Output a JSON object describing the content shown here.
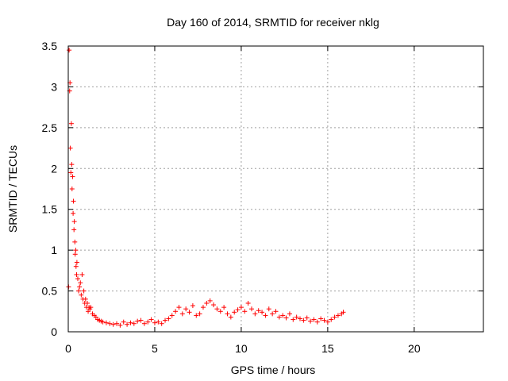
{
  "chart_data": {
    "type": "scatter",
    "title": "Day 160 of 2014, SRMTID for receiver nklg",
    "xlabel": "GPS time / hours",
    "ylabel": "SRMTID / TECUs",
    "xlim": [
      0,
      24
    ],
    "ylim": [
      0,
      3.5
    ],
    "xticks": [
      0,
      5,
      10,
      15,
      20
    ],
    "xtick_labels": [
      "0",
      "5",
      "10",
      "15",
      "20"
    ],
    "yticks": [
      0,
      0.5,
      1,
      1.5,
      2,
      2.5,
      3,
      3.5
    ],
    "ytick_labels": [
      "0",
      "0.5",
      "1",
      "1.5",
      "2",
      "2.5",
      "3",
      "3.5"
    ],
    "grid": true,
    "marker": "+",
    "marker_color": "#ff0000",
    "series": [
      {
        "name": "SRMTID",
        "x": [
          0.02,
          0.05,
          0.08,
          0.1,
          0.12,
          0.15,
          0.18,
          0.2,
          0.22,
          0.25,
          0.28,
          0.3,
          0.33,
          0.35,
          0.38,
          0.4,
          0.43,
          0.45,
          0.48,
          0.5,
          0.55,
          0.6,
          0.65,
          0.7,
          0.75,
          0.8,
          0.85,
          0.9,
          0.95,
          1.0,
          1.05,
          1.1,
          1.15,
          1.2,
          1.25,
          1.3,
          1.4,
          1.5,
          1.6,
          1.7,
          1.8,
          1.9,
          2.0,
          2.2,
          2.4,
          2.6,
          2.8,
          3.0,
          3.2,
          3.4,
          3.6,
          3.8,
          4.0,
          4.2,
          4.4,
          4.6,
          4.8,
          5.0,
          5.2,
          5.4,
          5.6,
          5.8,
          6.0,
          6.2,
          6.4,
          6.6,
          6.8,
          7.0,
          7.2,
          7.4,
          7.6,
          7.8,
          8.0,
          8.2,
          8.4,
          8.6,
          8.8,
          9.0,
          9.2,
          9.4,
          9.6,
          9.8,
          10.0,
          10.2,
          10.4,
          10.6,
          10.8,
          11.0,
          11.2,
          11.4,
          11.6,
          11.8,
          12.0,
          12.2,
          12.4,
          12.6,
          12.8,
          13.0,
          13.2,
          13.4,
          13.6,
          13.8,
          14.0,
          14.2,
          14.4,
          14.6,
          14.8,
          15.0,
          15.2,
          15.4,
          15.6,
          15.8,
          15.9
        ],
        "y": [
          0.55,
          3.45,
          2.95,
          3.05,
          2.25,
          1.95,
          2.55,
          2.05,
          1.75,
          1.9,
          1.45,
          1.6,
          1.25,
          1.35,
          1.1,
          0.95,
          1.0,
          0.8,
          0.7,
          0.85,
          0.65,
          0.5,
          0.55,
          0.6,
          0.45,
          0.7,
          0.4,
          0.5,
          0.35,
          0.4,
          0.3,
          0.35,
          0.25,
          0.3,
          0.28,
          0.3,
          0.22,
          0.2,
          0.18,
          0.15,
          0.14,
          0.13,
          0.12,
          0.11,
          0.1,
          0.09,
          0.1,
          0.08,
          0.12,
          0.09,
          0.11,
          0.1,
          0.13,
          0.14,
          0.1,
          0.12,
          0.15,
          0.11,
          0.12,
          0.1,
          0.14,
          0.16,
          0.2,
          0.25,
          0.3,
          0.22,
          0.28,
          0.24,
          0.32,
          0.2,
          0.22,
          0.3,
          0.35,
          0.38,
          0.33,
          0.28,
          0.25,
          0.3,
          0.22,
          0.18,
          0.24,
          0.27,
          0.3,
          0.25,
          0.35,
          0.28,
          0.22,
          0.26,
          0.24,
          0.2,
          0.28,
          0.22,
          0.25,
          0.18,
          0.2,
          0.17,
          0.22,
          0.15,
          0.18,
          0.16,
          0.14,
          0.17,
          0.13,
          0.15,
          0.12,
          0.16,
          0.14,
          0.12,
          0.15,
          0.18,
          0.2,
          0.22,
          0.24
        ]
      }
    ]
  }
}
